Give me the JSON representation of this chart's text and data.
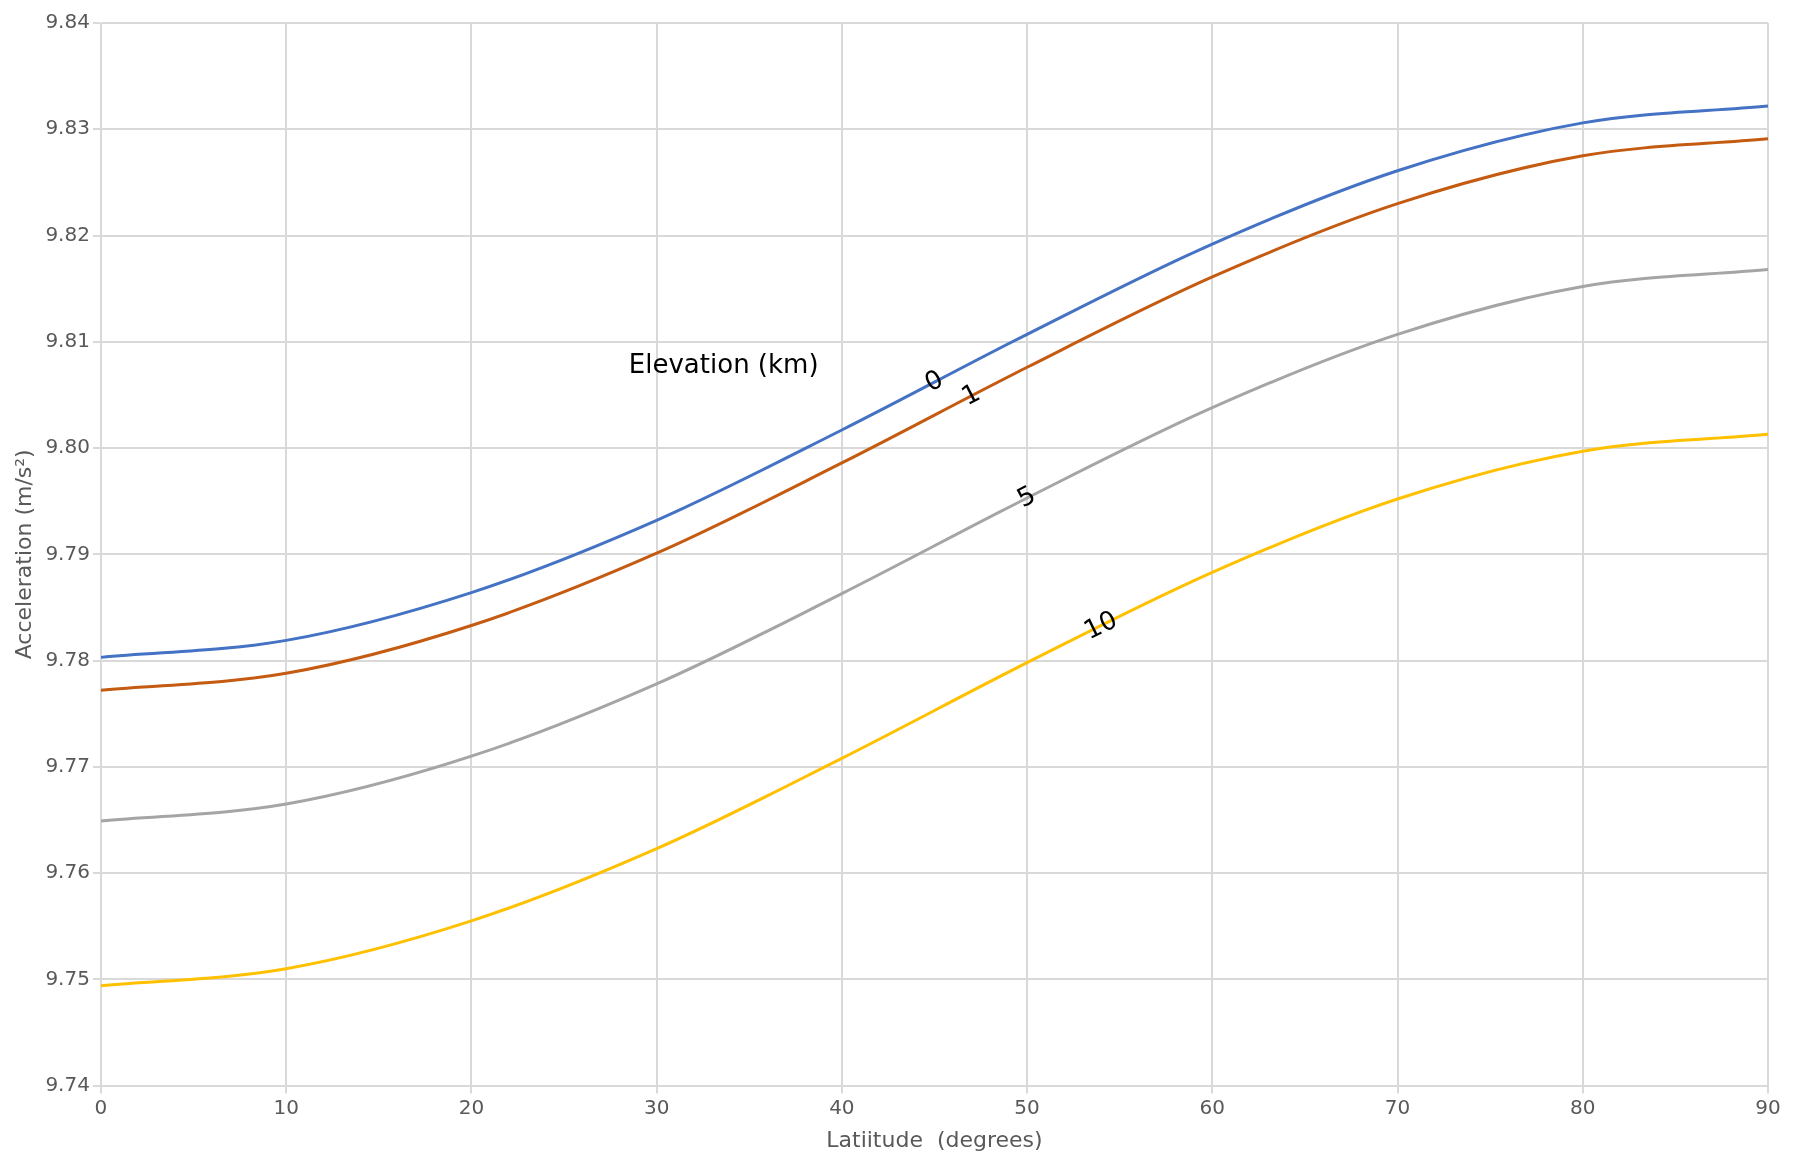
{
  "chart_data": {
    "type": "line",
    "xlabel": "Latiitude  (degrees)",
    "ylabel": "Acceleration (m/s²)",
    "legend_title": "Elevation (km)",
    "x": [
      0,
      10,
      20,
      30,
      40,
      50,
      60,
      70,
      80,
      90
    ],
    "series": [
      {
        "name": "0",
        "color": "#4472c4",
        "values": [
          9.7803,
          9.7819,
          9.7864,
          9.7932,
          9.8017,
          9.8107,
          9.8192,
          9.8261,
          9.8306,
          9.8322
        ]
      },
      {
        "name": "1",
        "color": "#c55a11",
        "values": [
          9.7772,
          9.7788,
          9.7833,
          9.7901,
          9.7986,
          9.8076,
          9.8161,
          9.823,
          9.8275,
          9.8291
        ]
      },
      {
        "name": "5",
        "color": "#a5a5a5",
        "values": [
          9.7649,
          9.7665,
          9.771,
          9.7778,
          9.7863,
          9.7953,
          9.8038,
          9.8107,
          9.8152,
          9.8168
        ]
      },
      {
        "name": "10",
        "color": "#ffc000",
        "values": [
          9.7494,
          9.751,
          9.7555,
          9.7623,
          9.7708,
          9.7798,
          9.7883,
          9.7952,
          9.7997,
          9.8013
        ]
      }
    ],
    "xlim": [
      0,
      90
    ],
    "xticks": [
      0,
      10,
      20,
      30,
      40,
      50,
      60,
      70,
      80,
      90
    ],
    "ylim": [
      9.74,
      9.84
    ],
    "yticks": [
      9.74,
      9.75,
      9.76,
      9.77,
      9.78,
      9.79,
      {
        "value": 9.8,
        "label": "9.80"
      },
      9.81,
      9.82,
      9.83,
      9.84
    ],
    "grid": true,
    "legend": false,
    "marker": "none",
    "line_style": "solid"
  }
}
